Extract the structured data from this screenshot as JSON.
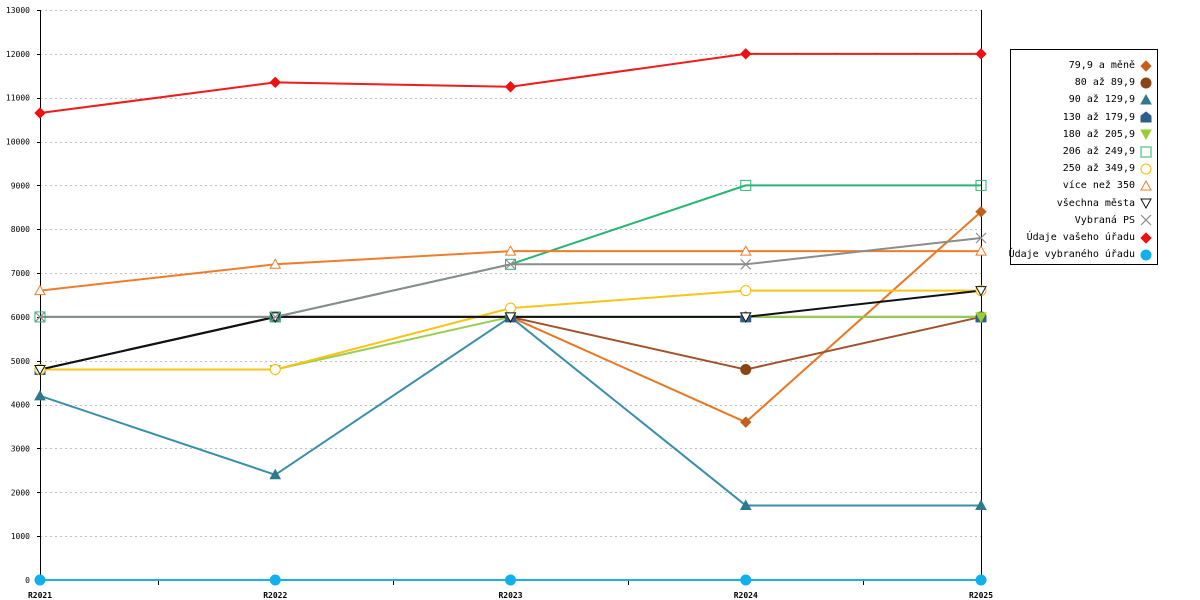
{
  "chart_data": {
    "type": "line",
    "categories": [
      "R2021",
      "R2022",
      "R2023",
      "R2024",
      "R2025"
    ],
    "ylim": [
      0,
      13000
    ],
    "yticks": [
      0,
      1000,
      2000,
      3000,
      4000,
      5000,
      6000,
      7000,
      8000,
      9000,
      10000,
      11000,
      12000,
      13000
    ],
    "grid": true,
    "legend_position": "right",
    "series": [
      {
        "name": "79,9 a měně",
        "color": "#e87722",
        "marker": "diamond",
        "marker_color": "#c2611d",
        "values": [
          4800,
          6000,
          6000,
          3600,
          8400
        ]
      },
      {
        "name": "80 až 89,9",
        "color": "#a0522d",
        "marker": "circle",
        "marker_color": "#8b4513",
        "values": [
          4800,
          6000,
          6000,
          4800,
          6000
        ]
      },
      {
        "name": "90 až 129,9",
        "color": "#3a8fa8",
        "marker": "triangle",
        "marker_color": "#2e7a8c",
        "values": [
          4200,
          2400,
          6000,
          1700,
          1700
        ]
      },
      {
        "name": "130 až 179,9",
        "color": "#2e5f8a",
        "marker": "house",
        "marker_color": "#2e5f8a",
        "values": [
          4800,
          6000,
          6000,
          6000,
          6000
        ]
      },
      {
        "name": "180 až 205,9",
        "color": "#9acd50",
        "marker": "triangle-down",
        "marker_color": "#9acd32",
        "values": [
          4800,
          4800,
          6000,
          6000,
          6000
        ]
      },
      {
        "name": "206 až 249,9",
        "color": "#2ab573",
        "marker": "square-open",
        "marker_color": "#2ab573",
        "values": [
          6000,
          6000,
          7200,
          9000,
          9000
        ]
      },
      {
        "name": "250 až 349,9",
        "color": "#f5c518",
        "marker": "circle-open",
        "marker_color": "#f5b800",
        "values": [
          4800,
          4800,
          6200,
          6600,
          6600
        ]
      },
      {
        "name": "více než 350",
        "color": "#f07c2a",
        "marker": "triangle-open",
        "marker_color": "#f07c2a",
        "values": [
          6600,
          7200,
          7500,
          7500,
          7500
        ]
      },
      {
        "name": "všechna města",
        "color": "#111111",
        "marker": "triangle-down-open",
        "marker_color": "#111111",
        "values": [
          4800,
          6000,
          6000,
          6000,
          6600
        ]
      },
      {
        "name": "Vybraná PS",
        "color": "#8c8c8c",
        "marker": "x",
        "marker_color": "#8c8c8c",
        "values": [
          6000,
          6000,
          7200,
          7200,
          7800
        ]
      },
      {
        "name": "Údaje vašeho úřadu",
        "color": "#ee1c1c",
        "marker": "diamond",
        "marker_color": "#ee1111",
        "values": [
          10650,
          11350,
          11250,
          12000,
          12000
        ]
      },
      {
        "name": "Údaje vybraného úřadu",
        "color": "#1eaee8",
        "marker": "circle",
        "marker_color": "#10b0ee",
        "values": [
          0,
          0,
          0,
          0,
          0
        ]
      }
    ]
  }
}
